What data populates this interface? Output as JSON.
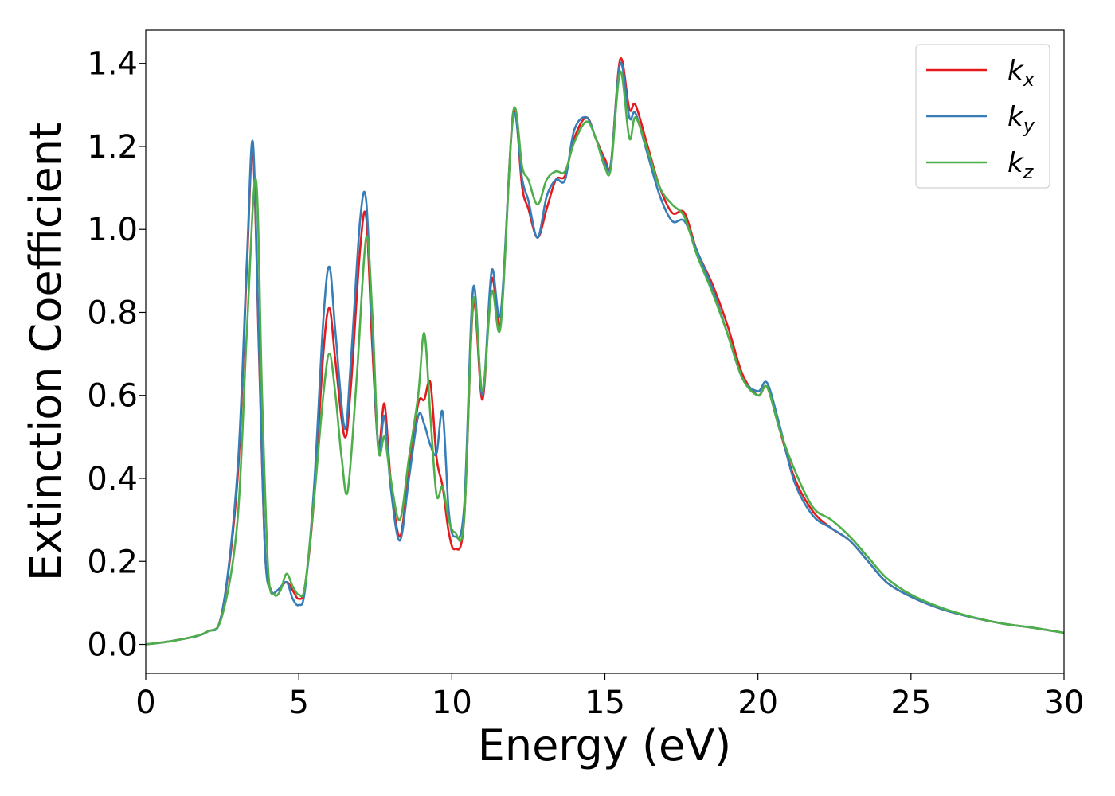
{
  "chart_data": {
    "type": "line",
    "title": "",
    "xlabel": "Energy (eV)",
    "ylabel": "Extinction Coefficient",
    "xlim": [
      0,
      30
    ],
    "ylim": [
      -0.07,
      1.48
    ],
    "xticks": [
      0,
      5,
      10,
      15,
      20,
      25,
      30
    ],
    "xtick_labels": [
      "0",
      "5",
      "10",
      "15",
      "20",
      "25",
      "30"
    ],
    "yticks": [
      0.0,
      0.2,
      0.4,
      0.6,
      0.8,
      1.0,
      1.2,
      1.4
    ],
    "ytick_labels": [
      "0.0",
      "0.2",
      "0.4",
      "0.6",
      "0.8",
      "1.0",
      "1.2",
      "1.4"
    ],
    "grid": false,
    "legend_position": "top-right",
    "series": [
      {
        "name": "k_x",
        "legend_base": "k",
        "legend_sub": "x",
        "color": "#e41a1c",
        "x": [
          0,
          1,
          2,
          2.5,
          3.0,
          3.3,
          3.5,
          3.7,
          3.9,
          4.1,
          4.3,
          4.6,
          4.8,
          5.0,
          5.2,
          5.5,
          5.8,
          6.0,
          6.2,
          6.5,
          6.7,
          7.0,
          7.2,
          7.4,
          7.6,
          7.8,
          8.0,
          8.3,
          8.6,
          8.9,
          9.1,
          9.3,
          9.5,
          9.7,
          9.9,
          10.1,
          10.4,
          10.7,
          11.0,
          11.3,
          11.6,
          12.0,
          12.3,
          12.5,
          12.8,
          13.1,
          13.4,
          13.7,
          14.0,
          14.4,
          14.7,
          15.0,
          15.2,
          15.5,
          15.8,
          16.0,
          16.4,
          16.8,
          17.2,
          17.6,
          18.0,
          18.5,
          19.0,
          19.5,
          20.0,
          20.3,
          20.7,
          21.2,
          21.8,
          22.4,
          23.0,
          23.6,
          24.2,
          25.0,
          26.0,
          27.0,
          28.0,
          29.0,
          30.0
        ],
        "y": [
          0.0,
          0.01,
          0.03,
          0.08,
          0.4,
          0.9,
          1.19,
          0.7,
          0.22,
          0.13,
          0.13,
          0.15,
          0.13,
          0.11,
          0.14,
          0.35,
          0.7,
          0.81,
          0.68,
          0.5,
          0.62,
          0.95,
          1.03,
          0.72,
          0.48,
          0.58,
          0.4,
          0.26,
          0.42,
          0.58,
          0.59,
          0.63,
          0.45,
          0.38,
          0.27,
          0.23,
          0.3,
          0.82,
          0.59,
          0.88,
          0.78,
          1.28,
          1.1,
          1.05,
          0.98,
          1.05,
          1.12,
          1.13,
          1.22,
          1.27,
          1.22,
          1.17,
          1.16,
          1.41,
          1.29,
          1.3,
          1.2,
          1.1,
          1.04,
          1.04,
          0.95,
          0.87,
          0.77,
          0.65,
          0.6,
          0.62,
          0.52,
          0.4,
          0.32,
          0.28,
          0.25,
          0.2,
          0.15,
          0.115,
          0.085,
          0.065,
          0.05,
          0.04,
          0.028
        ]
      },
      {
        "name": "k_y",
        "legend_base": "k",
        "legend_sub": "y",
        "color": "#377eb8",
        "x": [
          0,
          1,
          2,
          2.5,
          3.0,
          3.3,
          3.5,
          3.7,
          3.9,
          4.1,
          4.3,
          4.6,
          4.8,
          5.0,
          5.2,
          5.5,
          5.8,
          6.0,
          6.2,
          6.5,
          6.7,
          7.0,
          7.2,
          7.4,
          7.6,
          7.8,
          8.0,
          8.3,
          8.6,
          8.9,
          9.1,
          9.3,
          9.5,
          9.7,
          9.9,
          10.1,
          10.4,
          10.7,
          11.0,
          11.3,
          11.6,
          12.0,
          12.3,
          12.5,
          12.8,
          13.1,
          13.4,
          13.7,
          14.0,
          14.4,
          14.7,
          15.0,
          15.2,
          15.5,
          15.8,
          16.0,
          16.4,
          16.8,
          17.2,
          17.6,
          18.0,
          18.5,
          19.0,
          19.5,
          20.0,
          20.3,
          20.7,
          21.2,
          21.8,
          22.4,
          23.0,
          23.6,
          24.2,
          25.0,
          26.0,
          27.0,
          28.0,
          29.0,
          30.0
        ],
        "y": [
          0.0,
          0.01,
          0.03,
          0.08,
          0.42,
          0.92,
          1.21,
          0.72,
          0.22,
          0.13,
          0.13,
          0.15,
          0.11,
          0.095,
          0.13,
          0.38,
          0.78,
          0.91,
          0.75,
          0.52,
          0.68,
          1.02,
          1.07,
          0.76,
          0.47,
          0.55,
          0.38,
          0.25,
          0.4,
          0.55,
          0.53,
          0.48,
          0.46,
          0.56,
          0.32,
          0.26,
          0.33,
          0.86,
          0.6,
          0.9,
          0.8,
          1.27,
          1.12,
          1.07,
          0.98,
          1.08,
          1.12,
          1.12,
          1.24,
          1.27,
          1.22,
          1.16,
          1.16,
          1.4,
          1.27,
          1.28,
          1.18,
          1.08,
          1.02,
          1.02,
          0.95,
          0.86,
          0.75,
          0.64,
          0.61,
          0.63,
          0.53,
          0.39,
          0.31,
          0.28,
          0.25,
          0.2,
          0.15,
          0.115,
          0.085,
          0.065,
          0.05,
          0.04,
          0.028
        ]
      },
      {
        "name": "k_z",
        "legend_base": "k",
        "legend_sub": "z",
        "color": "#4daf4a",
        "x": [
          0,
          1,
          2,
          2.5,
          3.0,
          3.3,
          3.6,
          3.8,
          4.0,
          4.2,
          4.4,
          4.6,
          4.8,
          5.0,
          5.2,
          5.5,
          5.8,
          6.0,
          6.2,
          6.4,
          6.6,
          6.9,
          7.2,
          7.4,
          7.6,
          7.8,
          8.0,
          8.3,
          8.6,
          8.9,
          9.1,
          9.3,
          9.5,
          9.7,
          9.9,
          10.1,
          10.4,
          10.7,
          11.0,
          11.3,
          11.6,
          12.0,
          12.3,
          12.5,
          12.8,
          13.1,
          13.4,
          13.7,
          14.0,
          14.4,
          14.7,
          15.0,
          15.2,
          15.5,
          15.8,
          16.0,
          16.4,
          16.8,
          17.2,
          17.6,
          18.0,
          18.5,
          19.0,
          19.5,
          20.0,
          20.3,
          20.7,
          21.2,
          21.8,
          22.4,
          23.0,
          23.6,
          24.2,
          25.0,
          26.0,
          27.0,
          28.0,
          29.0,
          30.0
        ],
        "y": [
          0.0,
          0.01,
          0.03,
          0.07,
          0.3,
          0.75,
          1.12,
          0.6,
          0.18,
          0.12,
          0.13,
          0.17,
          0.14,
          0.12,
          0.14,
          0.35,
          0.6,
          0.7,
          0.6,
          0.45,
          0.37,
          0.65,
          0.98,
          0.8,
          0.47,
          0.5,
          0.4,
          0.3,
          0.45,
          0.6,
          0.75,
          0.55,
          0.36,
          0.38,
          0.3,
          0.27,
          0.3,
          0.83,
          0.61,
          0.85,
          0.77,
          1.28,
          1.15,
          1.12,
          1.06,
          1.12,
          1.14,
          1.14,
          1.21,
          1.26,
          1.22,
          1.15,
          1.15,
          1.38,
          1.22,
          1.27,
          1.19,
          1.1,
          1.06,
          1.03,
          0.94,
          0.85,
          0.75,
          0.64,
          0.6,
          0.62,
          0.52,
          0.42,
          0.33,
          0.3,
          0.26,
          0.21,
          0.16,
          0.12,
          0.088,
          0.066,
          0.05,
          0.04,
          0.028
        ]
      }
    ]
  }
}
